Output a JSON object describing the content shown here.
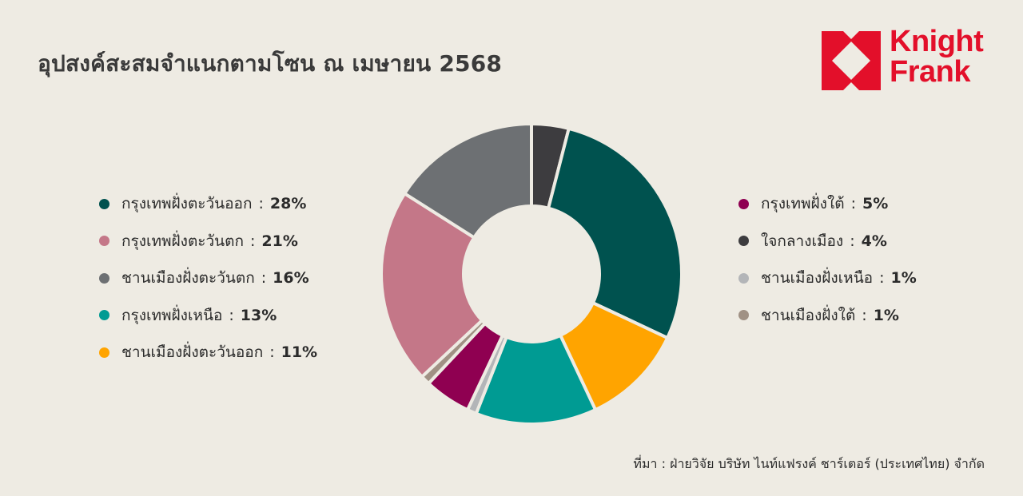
{
  "header": {
    "title": "อุปสงค์สะสมจำแนกตามโซน ณ เมษายน 2568"
  },
  "logo": {
    "line1": "Knight",
    "line2": "Frank",
    "color": "#e30f2a",
    "icon": "knight-frank-logo-icon"
  },
  "legend": {
    "separator": ":",
    "left": [
      {
        "label": "กรุงเทพฝั่งตะวันออก",
        "value": "28%",
        "color": "#00524f"
      },
      {
        "label": "กรุงเทพฝั่งตะวันตก",
        "value": "21%",
        "color": "#c47788"
      },
      {
        "label": "ชานเมืองฝั่งตะวันตก",
        "value": "16%",
        "color": "#6d7073"
      },
      {
        "label": "กรุงเทพฝั่งเหนือ",
        "value": "13%",
        "color": "#009b93"
      },
      {
        "label": "ชานเมืองฝั่งตะวันออก",
        "value": "11%",
        "color": "#ffa400"
      }
    ],
    "right": [
      {
        "label": "กรุงเทพฝั่งใต้",
        "value": "5%",
        "color": "#8f0051"
      },
      {
        "label": "ใจกลางเมือง",
        "value": "4%",
        "color": "#3d3c3f"
      },
      {
        "label": "ชานเมืองฝั่งเหนือ",
        "value": "1%",
        "color": "#b3b5b8"
      },
      {
        "label": "ชานเมืองฝั่งใต้",
        "value": "1%",
        "color": "#a09184"
      }
    ]
  },
  "source": {
    "text": "ที่มา : ฝ่ายวิจัย บริษัท ไนท์แฟรงค์ ชาร์เตอร์ (ประเทศไทย) จำกัด"
  },
  "chart_data": {
    "type": "pie",
    "subtype": "donut",
    "title": "อุปสงค์สะสมจำแนกตามโซน ณ เมษายน 2568",
    "unit": "%",
    "start_angle_deg": 0,
    "direction": "clockwise",
    "legend_position": "left-and-right",
    "categories": [
      "ใจกลางเมือง",
      "กรุงเทพฝั่งตะวันออก",
      "ชานเมืองฝั่งตะวันออก",
      "กรุงเทพฝั่งเหนือ",
      "ชานเมืองฝั่งเหนือ",
      "กรุงเทพฝั่งใต้",
      "ชานเมืองฝั่งใต้",
      "กรุงเทพฝั่งตะวันตก",
      "ชานเมืองฝั่งตะวันตก"
    ],
    "values": [
      4,
      28,
      11,
      13,
      1,
      5,
      1,
      21,
      16
    ],
    "colors": [
      "#3d3c3f",
      "#00524f",
      "#ffa400",
      "#009b93",
      "#b3b5b8",
      "#8f0051",
      "#a09184",
      "#c47788",
      "#6d7073"
    ],
    "source": "ที่มา : ฝ่ายวิจัย บริษัท ไนท์แฟรงค์ ชาร์เตอร์ (ประเทศไทย) จำกัด"
  }
}
